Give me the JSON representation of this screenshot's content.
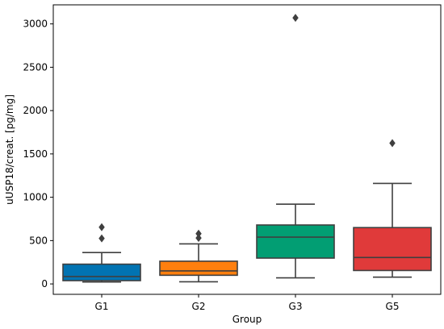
{
  "chart_data": {
    "type": "boxplot",
    "xlabel": "Group",
    "ylabel": "uUSP18/creat. [pg/mg]",
    "ylim": [
      -120,
      3220
    ],
    "yticks": [
      0,
      500,
      1000,
      1500,
      2000,
      2500,
      3000
    ],
    "categories": [
      "G1",
      "G2",
      "G3",
      "G5"
    ],
    "series": [
      {
        "category": "G1",
        "color": "#0173b2",
        "whisker_low": 22,
        "q1": 38,
        "median": 85,
        "q3": 228,
        "whisker_high": 362,
        "outliers": [
          525,
          655
        ]
      },
      {
        "category": "G2",
        "color": "#ff7f0e",
        "whisker_low": 25,
        "q1": 100,
        "median": 150,
        "q3": 262,
        "whisker_high": 462,
        "outliers": [
          530,
          580
        ]
      },
      {
        "category": "G3",
        "color": "#029e73",
        "whisker_low": 70,
        "q1": 298,
        "median": 540,
        "q3": 680,
        "whisker_high": 920,
        "outliers": [
          3070
        ]
      },
      {
        "category": "G5",
        "color": "#e03a3a",
        "whisker_low": 78,
        "q1": 155,
        "median": 305,
        "q3": 650,
        "whisker_high": 1160,
        "outliers": [
          1625
        ]
      }
    ],
    "grid": false,
    "legend": "none"
  }
}
